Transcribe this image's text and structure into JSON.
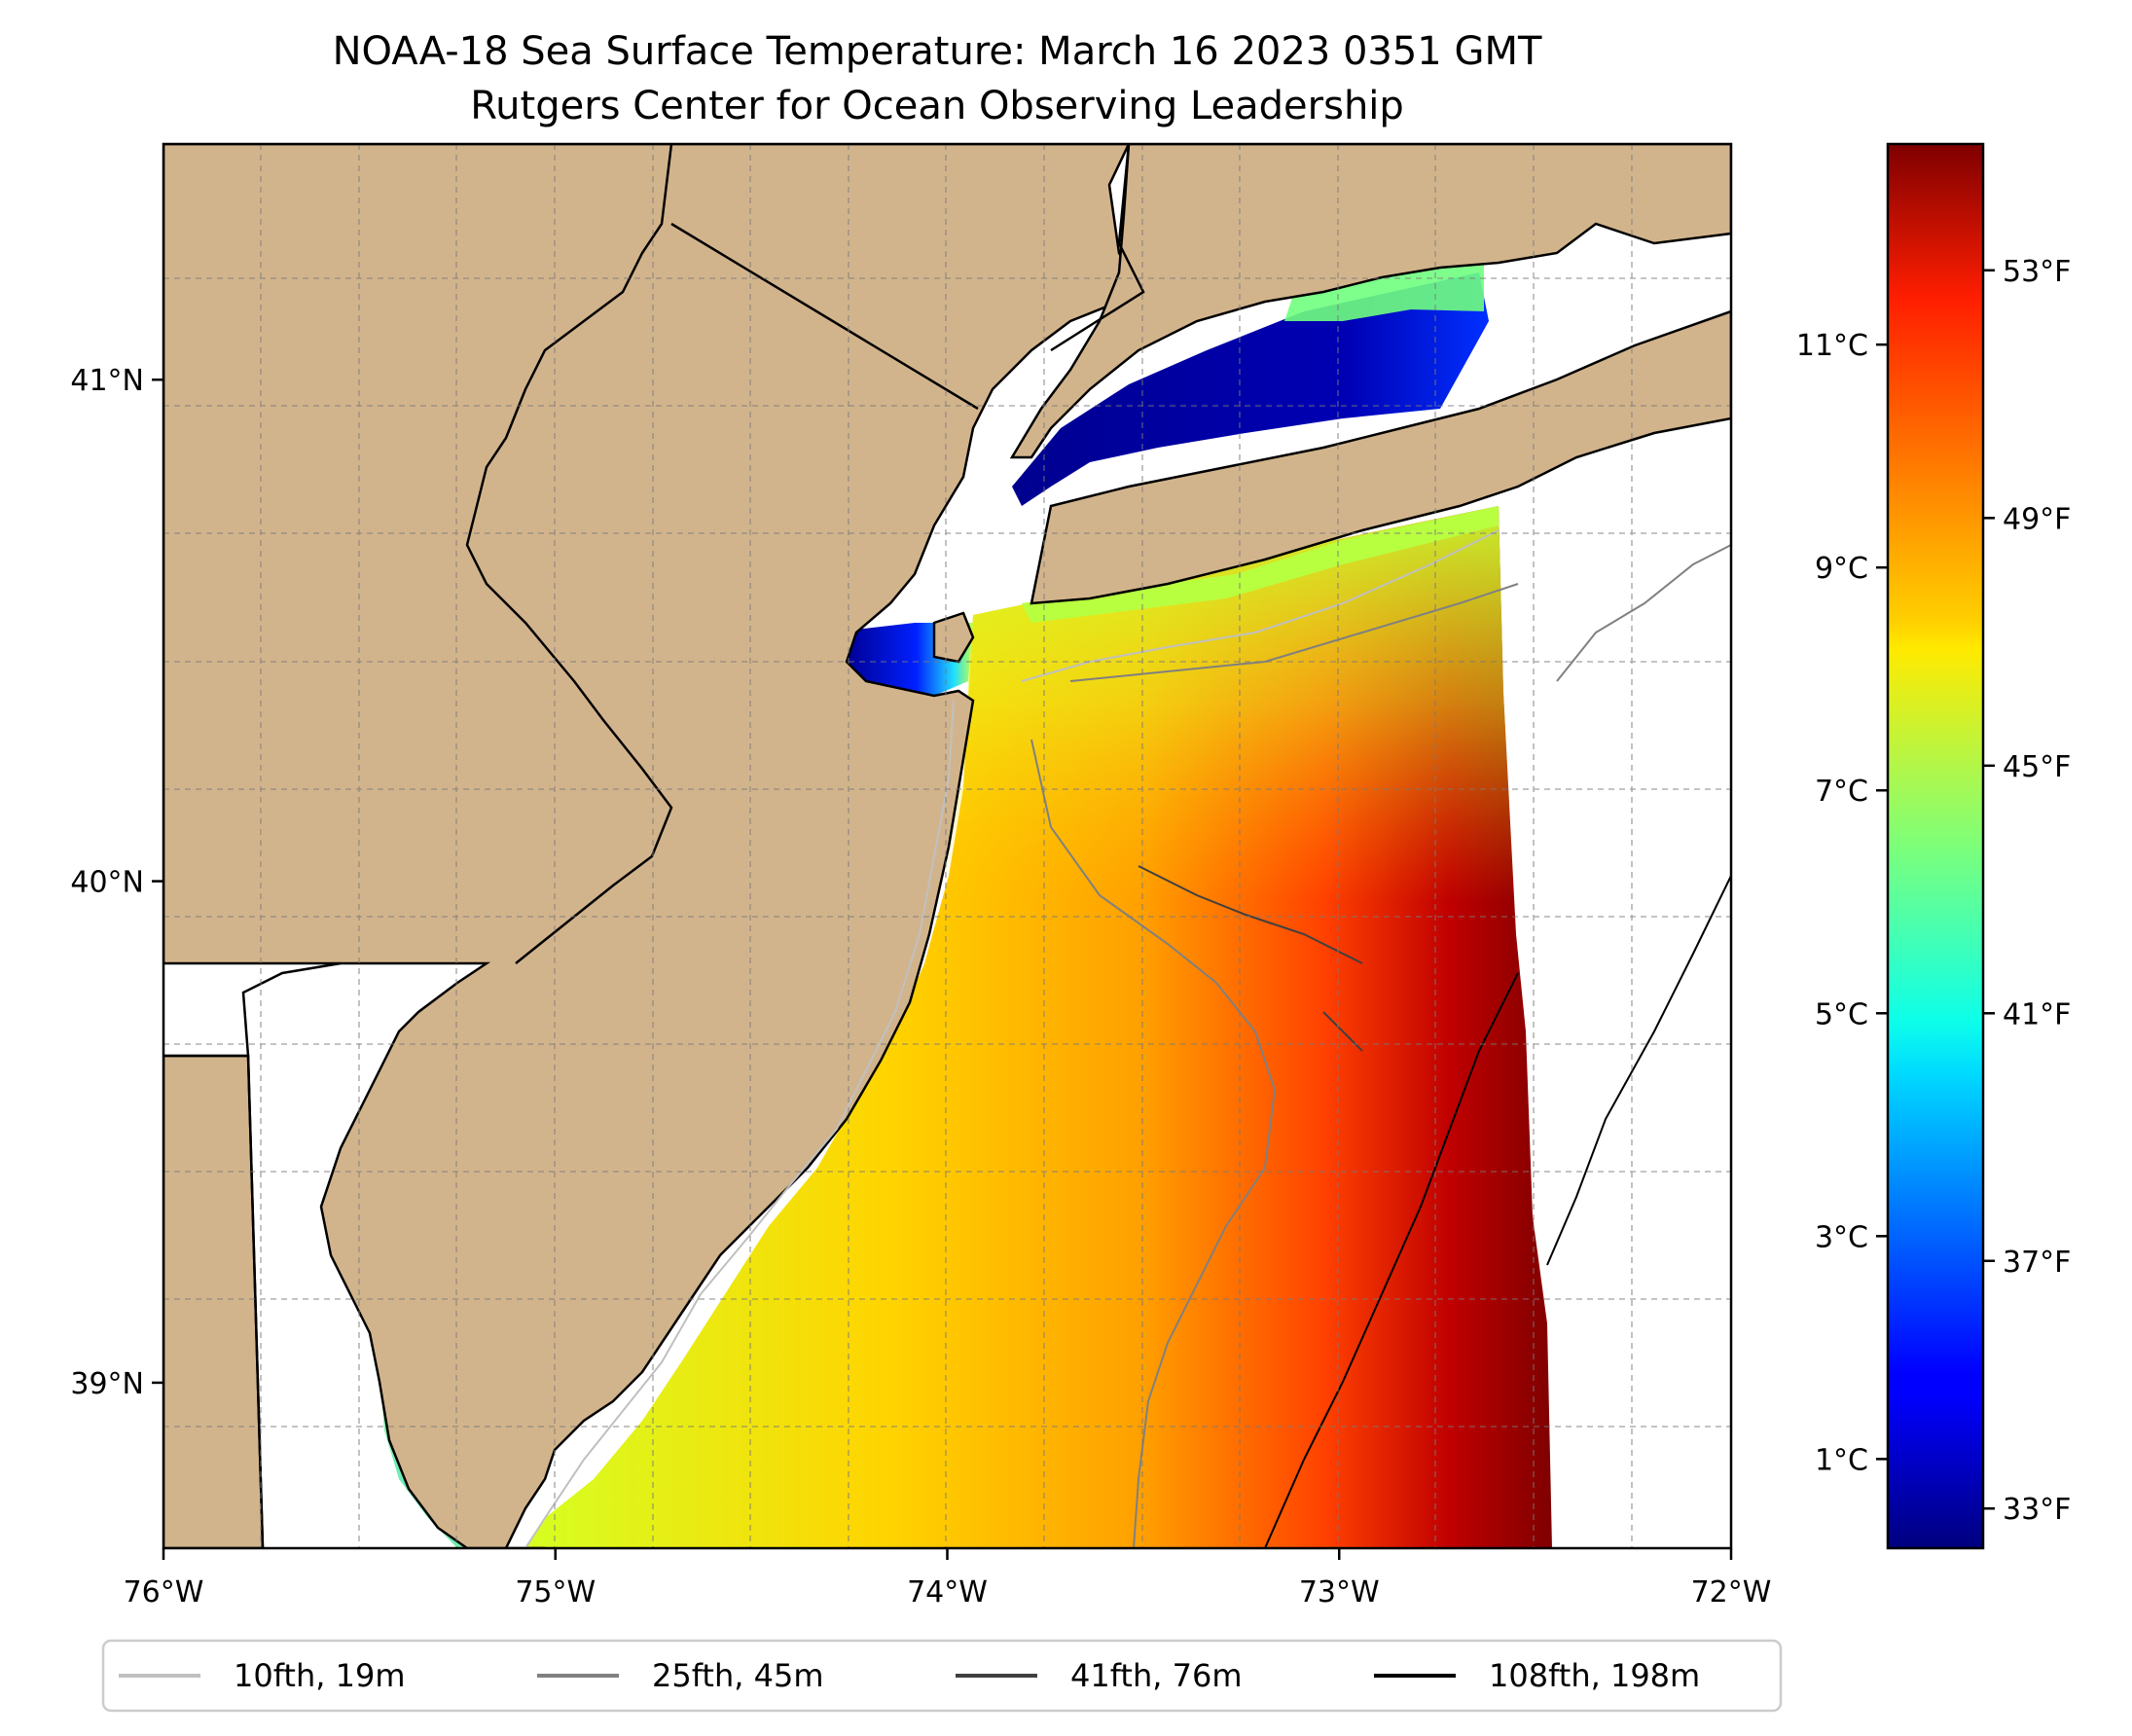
{
  "title": {
    "line1": "NOAA-18 Sea Surface Temperature: March 16 2023 0351 GMT",
    "line2": "Rutgers Center for Ocean Observing Leadership"
  },
  "map": {
    "lon_range": [
      -76,
      -72
    ],
    "lat_range": [
      38.67,
      41.47
    ],
    "land_color": "#d2b48c",
    "x_ticks": [
      {
        "lon": -76,
        "label": "76°W"
      },
      {
        "lon": -75,
        "label": "75°W"
      },
      {
        "lon": -74,
        "label": "74°W"
      },
      {
        "lon": -73,
        "label": "73°W"
      },
      {
        "lon": -72,
        "label": "72°W"
      }
    ],
    "y_ticks": [
      {
        "lat": 41,
        "label": "41°N"
      },
      {
        "lat": 40,
        "label": "40°N"
      },
      {
        "lat": 39,
        "label": "39°N"
      }
    ],
    "grid": "on, dashed"
  },
  "colorbar": {
    "colormap": "jet",
    "min_c": 0.2,
    "max_c": 12.8,
    "celsius_ticks": [
      {
        "value": 1,
        "label": "1°C"
      },
      {
        "value": 3,
        "label": "3°C"
      },
      {
        "value": 5,
        "label": "5°C"
      },
      {
        "value": 7,
        "label": "7°C"
      },
      {
        "value": 9,
        "label": "9°C"
      },
      {
        "value": 11,
        "label": "11°C"
      }
    ],
    "fahrenheit_ticks": [
      {
        "value_c": 0.556,
        "label": "33°F"
      },
      {
        "value_c": 2.778,
        "label": "37°F"
      },
      {
        "value_c": 5.0,
        "label": "41°F"
      },
      {
        "value_c": 7.222,
        "label": "45°F"
      },
      {
        "value_c": 9.444,
        "label": "49°F"
      },
      {
        "value_c": 11.667,
        "label": "53°F"
      }
    ]
  },
  "legend": {
    "items": [
      {
        "label": "10fth, 19m",
        "color": "#c0c0c0"
      },
      {
        "label": "25fth, 45m",
        "color": "#808080"
      },
      {
        "label": "41fth, 76m",
        "color": "#404040"
      },
      {
        "label": "108fth, 198m",
        "color": "#000000"
      }
    ]
  }
}
